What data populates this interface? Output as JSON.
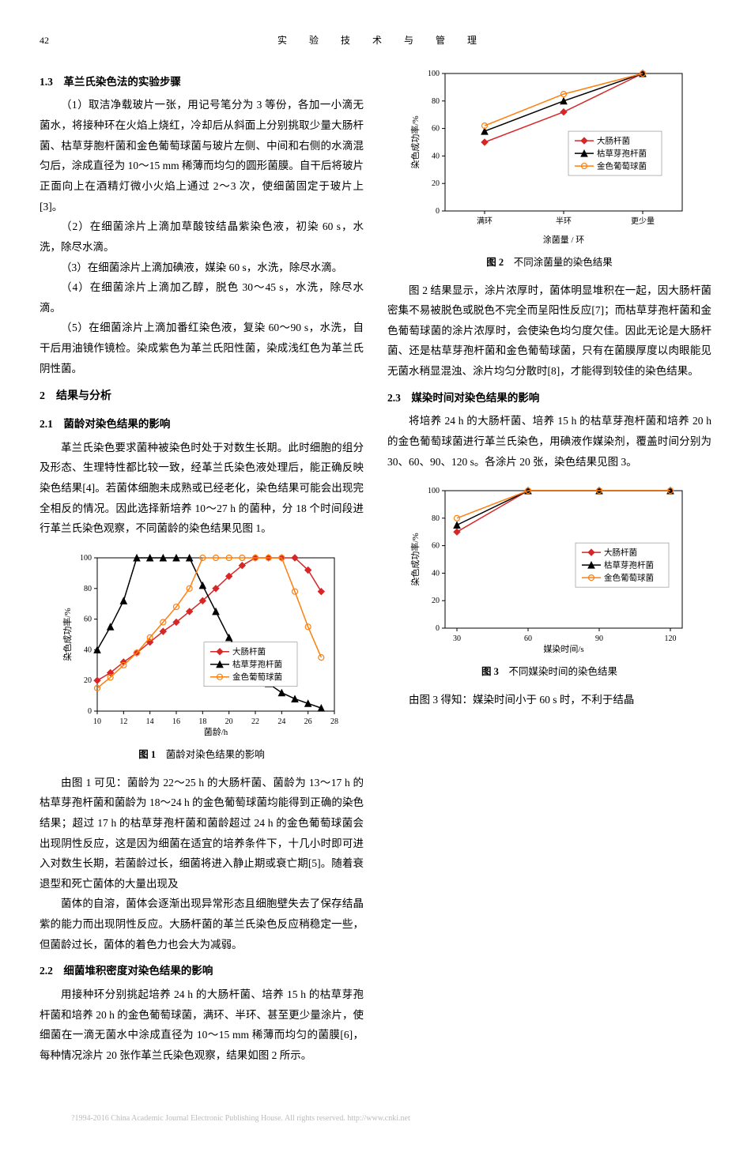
{
  "header": {
    "pageNum": "42",
    "journal": "实　验　技　术　与　管　理"
  },
  "text": {
    "s13_title": "1.3　革兰氏染色法的实验步骤",
    "s13_p1": "（1）取洁净载玻片一张，用记号笔分为 3 等份，各加一小滴无菌水，将接种环在火焰上烧红，冷却后从斜面上分别挑取少量大肠杆菌、枯草芽胞杆菌和金色葡萄球菌与玻片左侧、中间和右侧的水滴混匀后，涂成直径为 10～15 mm 稀薄而均匀的圆形菌膜。自干后将玻片正面向上在酒精灯微小火焰上通过 2～3 次，使细菌固定于玻片上[3]。",
    "s13_p2": "（2）在细菌涂片上滴加草酸铵结晶紫染色液，初染 60 s，水洗，除尽水滴。",
    "s13_p3": "（3）在细菌涂片上滴加碘液，媒染 60 s，水洗，除尽水滴。",
    "s13_p4": "（4）在细菌涂片上滴加乙醇，脱色 30～45 s，水洗，除尽水滴。",
    "s13_p5": "（5）在细菌涂片上滴加番红染色液，复染 60～90 s，水洗，自干后用油镜作镜检。染成紫色为革兰氏阳性菌，染成浅红色为革兰氏阴性菌。",
    "s2_title": "2　结果与分析",
    "s21_title": "2.1　菌龄对染色结果的影响",
    "s21_p1": "革兰氏染色要求菌种被染色时处于对数生长期。此时细胞的组分及形态、生理特性都比较一致，经革兰氏染色液处理后，能正确反映染色结果[4]。若菌体细胞未成熟或已经老化，染色结果可能会出现完全相反的情况。因此选择新培养 10～27 h 的菌种，分 18 个时间段进行革兰氏染色观察，不同菌龄的染色结果见图 1。",
    "fig1_caption_b": "图 1",
    "fig1_caption": "　菌龄对染色结果的影响",
    "s21_p2": "由图 1 可见：菌龄为 22～25 h 的大肠杆菌、菌龄为 13～17 h 的枯草芽孢杆菌和菌龄为 18～24 h 的金色葡萄球菌均能得到正确的染色结果；超过 17 h 的枯草芽孢杆菌和菌龄超过 24 h 的金色葡萄球菌会出现阴性反应，这是因为细菌在适宜的培养条件下，十几小时即可进入对数生长期，若菌龄过长，细菌将进入静止期或衰亡期[5]。随着衰退型和死亡菌体的大量出现及",
    "col2_p1": "菌体的自溶，菌体会逐渐出现异常形态且细胞壁失去了保存结晶紫的能力而出现阴性反应。大肠杆菌的革兰氏染色反应稍稳定一些，但菌龄过长，菌体的着色力也会大为减弱。",
    "s22_title": "2.2　细菌堆积密度对染色结果的影响",
    "s22_p1": "用接种环分别挑起培养 24 h 的大肠杆菌、培养 15 h 的枯草芽孢杆菌和培养 20 h 的金色葡萄球菌，满环、半环、甚至更少量涂片，使细菌在一滴无菌水中涂成直径为 10～15 mm 稀薄而均匀的菌膜[6]，每种情况涂片 20 张作革兰氏染色观察，结果如图 2 所示。",
    "fig2_caption_b": "图 2",
    "fig2_caption": "　不同涂菌量的染色结果",
    "s22_p2": "图 2 结果显示，涂片浓厚时，菌体明显堆积在一起，因大肠杆菌密集不易被脱色或脱色不完全而呈阳性反应[7]；而枯草芽孢杆菌和金色葡萄球菌的涂片浓厚时，会使染色均匀度欠佳。因此无论是大肠杆菌、还是枯草芽孢杆菌和金色葡萄球菌，只有在菌膜厚度以肉眼能见无菌水稍显混浊、涂片均匀分散时[8]，才能得到较佳的染色结果。",
    "s23_title": "2.3　媒染时间对染色结果的影响",
    "s23_p1": "将培养 24 h 的大肠杆菌、培养 15 h 的枯草芽孢杆菌和培养 20 h 的金色葡萄球菌进行革兰氏染色，用碘液作媒染剂，覆盖时间分别为 30、60、90、120 s。各涂片 20 张，染色结果见图 3。",
    "fig3_caption_b": "图 3",
    "fig3_caption": "　不同媒染时间的染色结果",
    "s23_p2": "由图 3 得知：媒染时间小于 60 s 时，不利于结晶",
    "watermark": "?1994-2016 China Academic Journal Electronic Publishing House. All rights reserved.   http://www.cnki.net"
  },
  "legend": {
    "series1": "大肠杆菌",
    "series2": "枯草芽孢杆菌",
    "series3": "金色葡萄球菌"
  },
  "colors": {
    "s1": "#d62728",
    "s2": "#000000",
    "s3": "#ff7f0e",
    "axis": "#000000",
    "grid": "#ffffff",
    "bg": "#ffffff"
  },
  "fig1": {
    "type": "line",
    "xlabel": "菌龄/h",
    "ylabel": "染色成功率/%",
    "xlim": [
      10,
      28
    ],
    "xtick_step": 2,
    "ylim": [
      0,
      100
    ],
    "ytick_step": 20,
    "series": [
      {
        "key": "s1",
        "marker": "diamond",
        "x": [
          10,
          11,
          12,
          13,
          14,
          15,
          16,
          17,
          18,
          19,
          20,
          21,
          22,
          23,
          24,
          25,
          26,
          27
        ],
        "y": [
          20,
          25,
          32,
          38,
          45,
          52,
          58,
          65,
          72,
          80,
          88,
          95,
          100,
          100,
          100,
          100,
          92,
          78
        ]
      },
      {
        "key": "s2",
        "marker": "triangle",
        "x": [
          10,
          11,
          12,
          13,
          14,
          15,
          16,
          17,
          18,
          19,
          20,
          21,
          22,
          23,
          24,
          25,
          26,
          27
        ],
        "y": [
          40,
          55,
          72,
          100,
          100,
          100,
          100,
          100,
          82,
          65,
          48,
          35,
          25,
          18,
          12,
          8,
          5,
          2
        ]
      },
      {
        "key": "s3",
        "marker": "circle",
        "x": [
          10,
          11,
          12,
          13,
          14,
          15,
          16,
          17,
          18,
          19,
          20,
          21,
          22,
          23,
          24,
          25,
          26,
          27
        ],
        "y": [
          15,
          22,
          30,
          38,
          48,
          58,
          68,
          80,
          100,
          100,
          100,
          100,
          100,
          100,
          100,
          78,
          55,
          35
        ]
      }
    ]
  },
  "fig2": {
    "type": "line",
    "xlabel": "涂菌量 / 环",
    "ylabel": "染色成功率/%",
    "categories": [
      "满环",
      "半环",
      "更少量"
    ],
    "ylim": [
      0,
      100
    ],
    "ytick_step": 20,
    "series": [
      {
        "key": "s1",
        "marker": "diamond",
        "y": [
          50,
          72,
          100
        ]
      },
      {
        "key": "s2",
        "marker": "triangle",
        "y": [
          58,
          80,
          100
        ]
      },
      {
        "key": "s3",
        "marker": "circle",
        "y": [
          62,
          85,
          100
        ]
      }
    ]
  },
  "fig3": {
    "type": "line",
    "xlabel": "媒染时间/s",
    "ylabel": "染色成功率/%",
    "x": [
      30,
      60,
      90,
      120
    ],
    "ylim": [
      0,
      100
    ],
    "ytick_step": 20,
    "series": [
      {
        "key": "s1",
        "marker": "diamond",
        "y": [
          70,
          100,
          100,
          100
        ]
      },
      {
        "key": "s2",
        "marker": "triangle",
        "y": [
          75,
          100,
          100,
          100
        ]
      },
      {
        "key": "s3",
        "marker": "circle",
        "y": [
          80,
          100,
          100,
          100
        ]
      }
    ]
  }
}
